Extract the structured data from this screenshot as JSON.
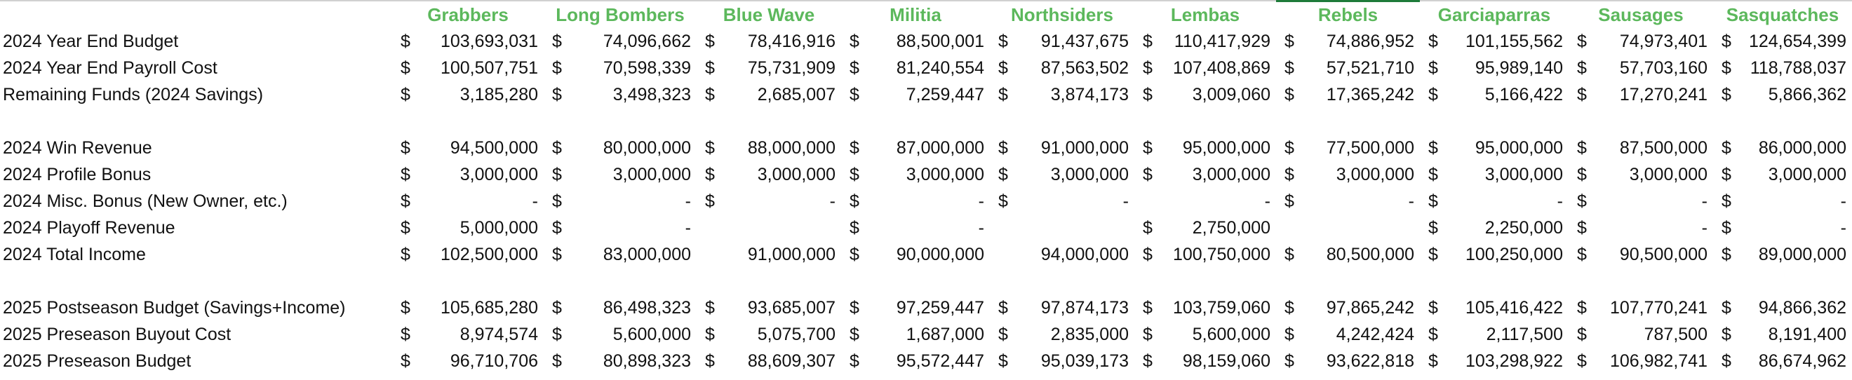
{
  "table": {
    "teams": [
      "Grabbers",
      "Long Bombers",
      "Blue Wave",
      "Militia",
      "Northsiders",
      "Lembas",
      "Rebels",
      "Garciaparras",
      "Sausages",
      "Sasquatches"
    ],
    "sections": [
      [
        {
          "label": "2024 Year End Budget",
          "cells": [
            [
              "$",
              "103,693,031"
            ],
            [
              "$",
              "74,096,662"
            ],
            [
              "$",
              "78,416,916"
            ],
            [
              "$",
              "88,500,001"
            ],
            [
              "$",
              "91,437,675"
            ],
            [
              "$",
              "110,417,929"
            ],
            [
              "$",
              "74,886,952"
            ],
            [
              "$",
              "101,155,562"
            ],
            [
              "$",
              "74,973,401"
            ],
            [
              "$",
              "124,654,399"
            ]
          ]
        },
        {
          "label": "2024 Year End Payroll Cost",
          "cells": [
            [
              "$",
              "100,507,751"
            ],
            [
              "$",
              "70,598,339"
            ],
            [
              "$",
              "75,731,909"
            ],
            [
              "$",
              "81,240,554"
            ],
            [
              "$",
              "87,563,502"
            ],
            [
              "$",
              "107,408,869"
            ],
            [
              "$",
              "57,521,710"
            ],
            [
              "$",
              "95,989,140"
            ],
            [
              "$",
              "57,703,160"
            ],
            [
              "$",
              "118,788,037"
            ]
          ]
        },
        {
          "label": "Remaining Funds (2024 Savings)",
          "cells": [
            [
              "$",
              "3,185,280"
            ],
            [
              "$",
              "3,498,323"
            ],
            [
              "$",
              "2,685,007"
            ],
            [
              "$",
              "7,259,447"
            ],
            [
              "$",
              "3,874,173"
            ],
            [
              "$",
              "3,009,060"
            ],
            [
              "$",
              "17,365,242"
            ],
            [
              "$",
              "5,166,422"
            ],
            [
              "$",
              "17,270,241"
            ],
            [
              "$",
              "5,866,362"
            ]
          ]
        }
      ],
      [
        {
          "label": "2024 Win Revenue",
          "cells": [
            [
              "$",
              "94,500,000"
            ],
            [
              "$",
              "80,000,000"
            ],
            [
              "$",
              "88,000,000"
            ],
            [
              "$",
              "87,000,000"
            ],
            [
              "$",
              "91,000,000"
            ],
            [
              "$",
              "95,000,000"
            ],
            [
              "$",
              "77,500,000"
            ],
            [
              "$",
              "95,000,000"
            ],
            [
              "$",
              "87,500,000"
            ],
            [
              "$",
              "86,000,000"
            ]
          ]
        },
        {
          "label": "2024 Profile Bonus",
          "cells": [
            [
              "$",
              "3,000,000"
            ],
            [
              "$",
              "3,000,000"
            ],
            [
              "$",
              "3,000,000"
            ],
            [
              "$",
              "3,000,000"
            ],
            [
              "$",
              "3,000,000"
            ],
            [
              "$",
              "3,000,000"
            ],
            [
              "$",
              "3,000,000"
            ],
            [
              "$",
              "3,000,000"
            ],
            [
              "$",
              "3,000,000"
            ],
            [
              "$",
              "3,000,000"
            ]
          ]
        },
        {
          "label": "2024 Misc. Bonus (New Owner, etc.)",
          "cells": [
            [
              "$",
              "-"
            ],
            [
              "$",
              "-"
            ],
            [
              "$",
              "-"
            ],
            [
              "$",
              "-"
            ],
            [
              "$",
              "-"
            ],
            [
              null,
              "-"
            ],
            [
              "$",
              "-"
            ],
            [
              "$",
              "-"
            ],
            [
              "$",
              "-"
            ],
            [
              "$",
              "-"
            ]
          ]
        },
        {
          "label": "2024 Playoff Revenue",
          "cells": [
            [
              "$",
              "5,000,000"
            ],
            [
              "$",
              "-"
            ],
            null,
            [
              "$",
              "-"
            ],
            null,
            [
              "$",
              "2,750,000"
            ],
            null,
            [
              "$",
              "2,250,000"
            ],
            [
              "$",
              "-"
            ],
            [
              "$",
              "-"
            ]
          ]
        },
        {
          "label": "2024 Total Income",
          "cells": [
            [
              "$",
              "102,500,000"
            ],
            [
              "$",
              "83,000,000"
            ],
            [
              null,
              "91,000,000"
            ],
            [
              "$",
              "90,000,000"
            ],
            [
              null,
              "94,000,000"
            ],
            [
              "$",
              "100,750,000"
            ],
            [
              "$",
              "80,500,000"
            ],
            [
              "$",
              "100,250,000"
            ],
            [
              "$",
              "90,500,000"
            ],
            [
              "$",
              "89,000,000"
            ]
          ]
        }
      ],
      [
        {
          "label": "2025 Postseason Budget (Savings+Income)",
          "cells": [
            [
              "$",
              "105,685,280"
            ],
            [
              "$",
              "86,498,323"
            ],
            [
              "$",
              "93,685,007"
            ],
            [
              "$",
              "97,259,447"
            ],
            [
              "$",
              "97,874,173"
            ],
            [
              "$",
              "103,759,060"
            ],
            [
              "$",
              "97,865,242"
            ],
            [
              "$",
              "105,416,422"
            ],
            [
              "$",
              "107,770,241"
            ],
            [
              "$",
              "94,866,362"
            ]
          ]
        },
        {
          "label": "2025 Preseason Buyout Cost",
          "cells": [
            [
              "$",
              "8,974,574"
            ],
            [
              "$",
              "5,600,000"
            ],
            [
              "$",
              "5,075,700"
            ],
            [
              "$",
              "1,687,000"
            ],
            [
              "$",
              "2,835,000"
            ],
            [
              "$",
              "5,600,000"
            ],
            [
              "$",
              "4,242,424"
            ],
            [
              "$",
              "2,117,500"
            ],
            [
              "$",
              "787,500"
            ],
            [
              "$",
              "8,191,400"
            ]
          ]
        },
        {
          "label": "2025 Preseason Budget",
          "cells": [
            [
              "$",
              "96,710,706"
            ],
            [
              "$",
              "80,898,323"
            ],
            [
              "$",
              "88,609,307"
            ],
            [
              "$",
              "95,572,447"
            ],
            [
              "$",
              "95,039,173"
            ],
            [
              "$",
              "98,159,060"
            ],
            [
              "$",
              "93,622,818"
            ],
            [
              "$",
              "103,298,922"
            ],
            [
              "$",
              "106,982,741"
            ],
            [
              "$",
              "86,674,962"
            ]
          ]
        }
      ]
    ]
  }
}
